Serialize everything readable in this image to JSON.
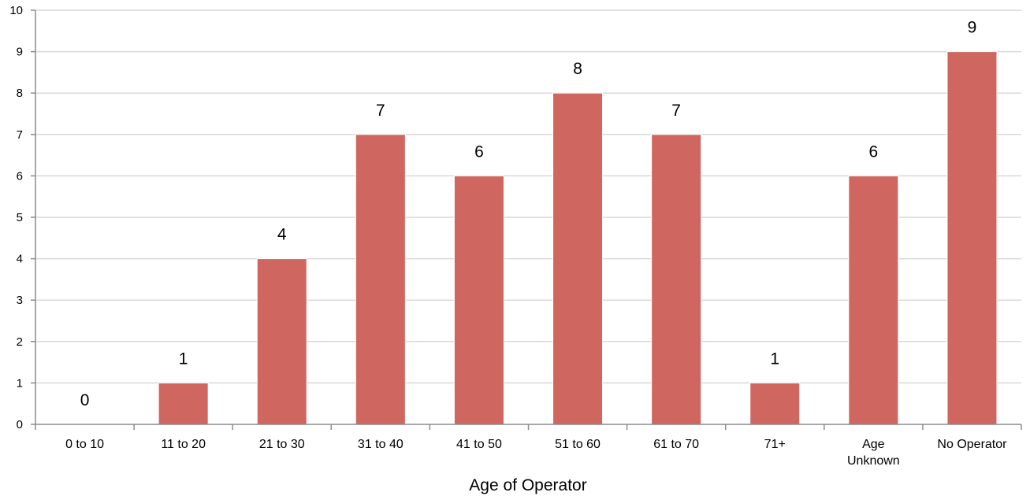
{
  "chart_data": {
    "type": "bar",
    "title": "",
    "xlabel": "Age of Operator",
    "ylabel": "",
    "categories": [
      "0 to 10",
      "11 to 20",
      "21 to 30",
      "31 to 40",
      "41 to 50",
      "51 to 60",
      "61 to 70",
      "71+",
      "Age\nUnknown",
      "No Operator"
    ],
    "values": [
      0,
      1,
      4,
      7,
      6,
      8,
      7,
      1,
      6,
      9
    ],
    "ylim": [
      0,
      10
    ],
    "yticks": [
      0,
      1,
      2,
      3,
      4,
      5,
      6,
      7,
      8,
      9,
      10
    ],
    "grid": true,
    "legend": "none",
    "bar_color": "#d06660"
  }
}
